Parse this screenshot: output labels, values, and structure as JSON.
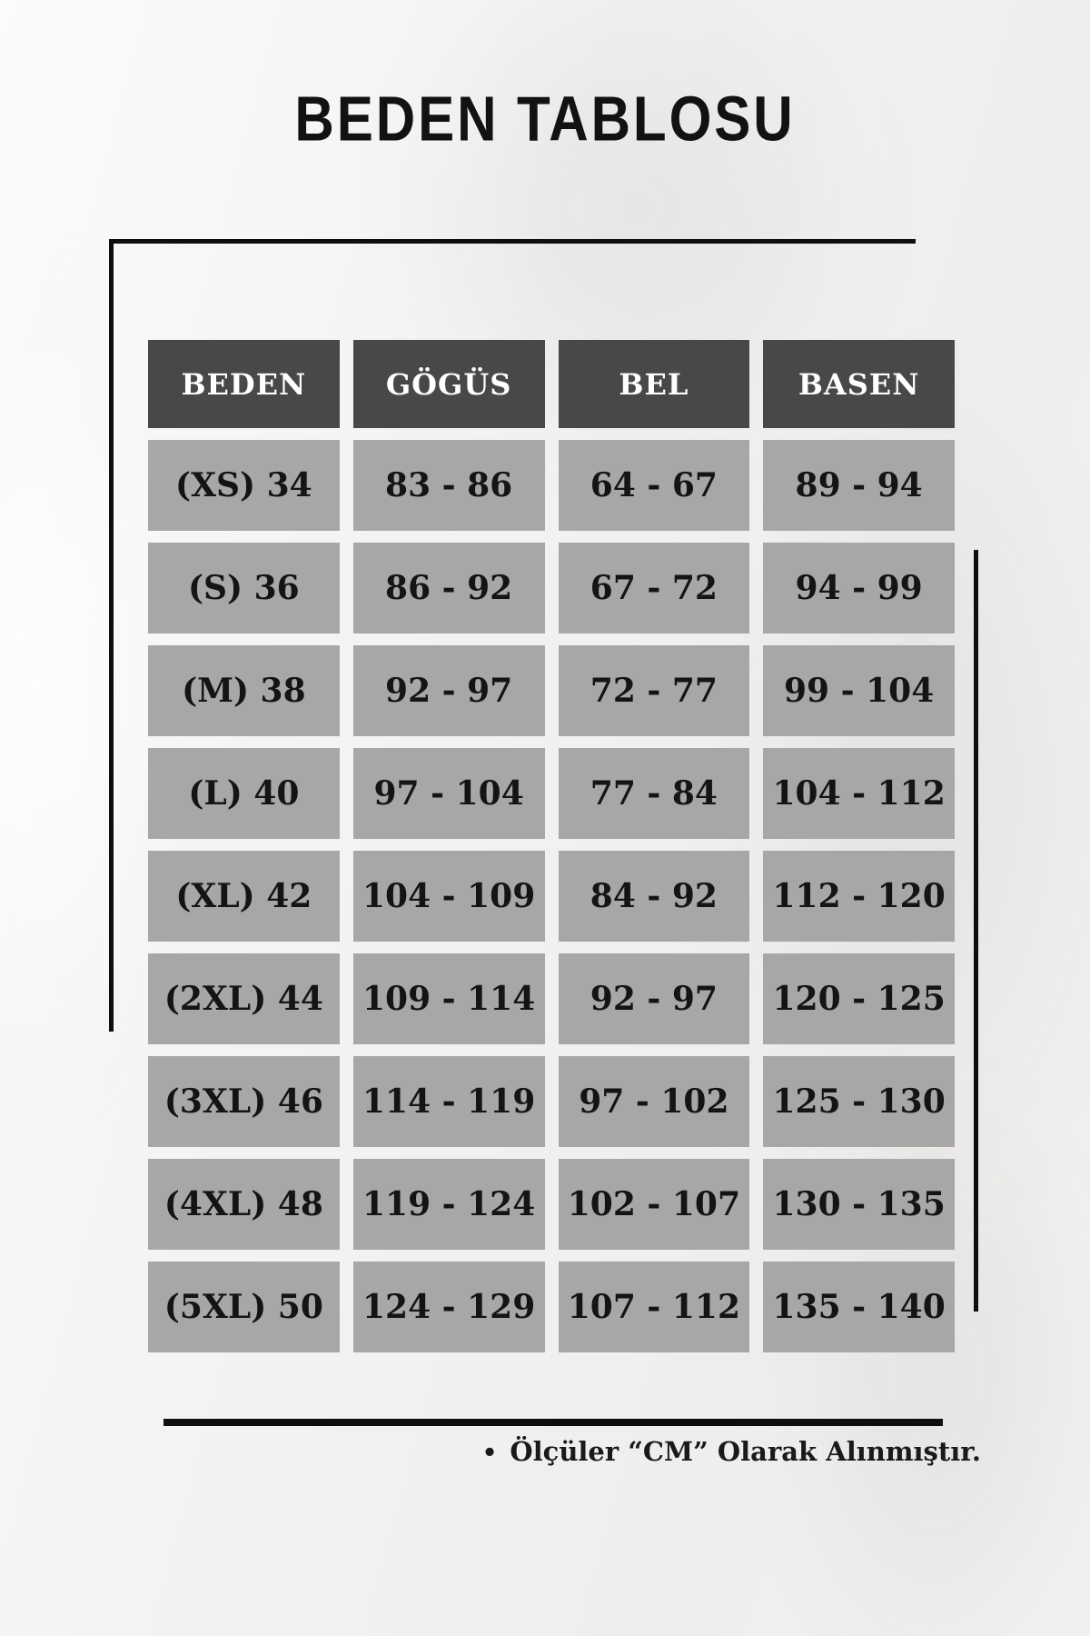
{
  "title": "BEDEN TABLOSU",
  "chart_data": {
    "type": "table",
    "title": "BEDEN TABLOSU",
    "columns": [
      "BEDEN",
      "GÖGÜS",
      "BEL",
      "BASEN"
    ],
    "rows": [
      [
        "(XS) 34",
        "83 - 86",
        "64 - 67",
        "89 - 94"
      ],
      [
        "(S) 36",
        "86 - 92",
        "67 - 72",
        "94 - 99"
      ],
      [
        "(M) 38",
        "92 - 97",
        "72 - 77",
        "99 - 104"
      ],
      [
        "(L) 40",
        "97 - 104",
        "77 - 84",
        "104 - 112"
      ],
      [
        "(XL) 42",
        "104 - 109",
        "84 - 92",
        "112 - 120"
      ],
      [
        "(2XL) 44",
        "109 - 114",
        "92 - 97",
        "120 - 125"
      ],
      [
        "(3XL) 46",
        "114 - 119",
        "97 - 102",
        "125 - 130"
      ],
      [
        "(4XL) 48",
        "119 - 124",
        "102 - 107",
        "130 - 135"
      ],
      [
        "(5XL) 50",
        "124 - 129",
        "107 - 112",
        "135 - 140"
      ]
    ],
    "note": "Ölçüler “CM” Olarak Alınmıştır."
  },
  "footnote": {
    "bullet": "•",
    "text": "Ölçüler “CM” Olarak Alınmıştır."
  },
  "colors": {
    "header_bg": "#4a4748",
    "header_text": "#ffffff",
    "cell_bg": "#a8a7a5",
    "text_dark": "#141414",
    "line": "#0e0e0e"
  }
}
